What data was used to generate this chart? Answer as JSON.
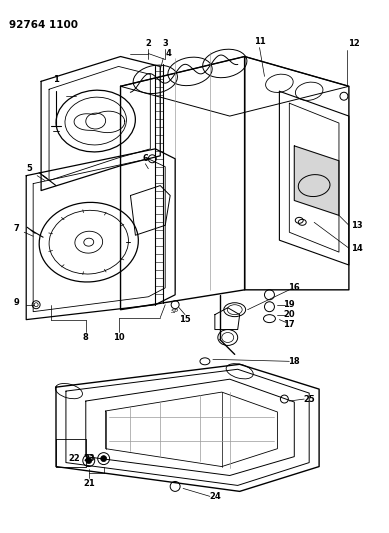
{
  "title_code": "92764 1100",
  "bg_color": "#ffffff",
  "fig_width": 3.89,
  "fig_height": 5.33,
  "dpi": 100,
  "label_fs": 6.0,
  "title_fs": 7.5
}
